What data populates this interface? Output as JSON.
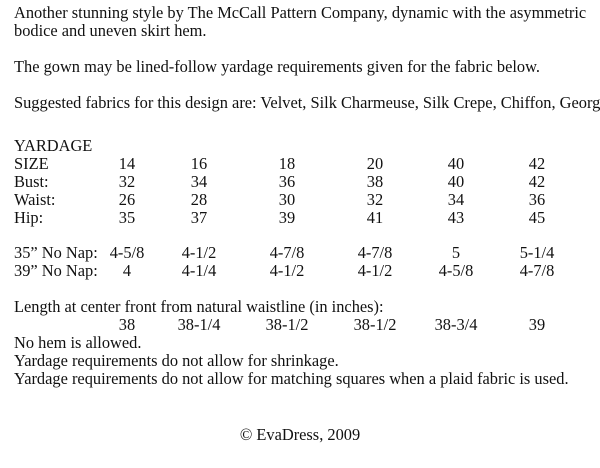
{
  "intro": {
    "line1": "Another stunning style by The McCall Pattern Company, dynamic with the asymmetric",
    "line2": "bodice and uneven skirt hem.",
    "lining": "The gown may be lined-follow yardage requirements given for the fabric below.",
    "fabrics": "Suggested fabrics for this design are: Velvet, Silk Charmeuse, Silk Crepe, Chiffon, Georgette."
  },
  "yardage": {
    "heading": "YARDAGE",
    "rows": [
      {
        "label": "SIZE",
        "values": [
          "14",
          "16",
          "18",
          "20",
          "40",
          "42"
        ]
      },
      {
        "label": "Bust:",
        "values": [
          "32",
          "34",
          "36",
          "38",
          "40",
          "42"
        ]
      },
      {
        "label": "Waist:",
        "values": [
          "26",
          "28",
          "30",
          "32",
          "34",
          "36"
        ]
      },
      {
        "label": "Hip:",
        "values": [
          "35",
          "37",
          "39",
          "41",
          "43",
          "45"
        ]
      },
      {
        "label": "35” No Nap:",
        "values": [
          "4-5/8",
          "4-1/2",
          "4-7/8",
          "4-7/8",
          "5",
          "5-1/4"
        ]
      },
      {
        "label": "39” No Nap:",
        "values": [
          "4",
          "4-1/4",
          "4-1/2",
          "4-1/2",
          "4-5/8",
          "4-7/8"
        ]
      },
      {
        "label": "",
        "values": [
          "38",
          "38-1/4",
          "38-1/2",
          "38-1/2",
          "38-3/4",
          "39"
        ]
      }
    ],
    "length_heading": "Length at center front from natural waistline (in inches):"
  },
  "notes": [
    "No hem is allowed.",
    "Yardage requirements do not allow for shrinkage.",
    "Yardage requirements do not allow for matching squares when a plaid fabric is used."
  ],
  "copyright": "© EvaDress, 2009"
}
